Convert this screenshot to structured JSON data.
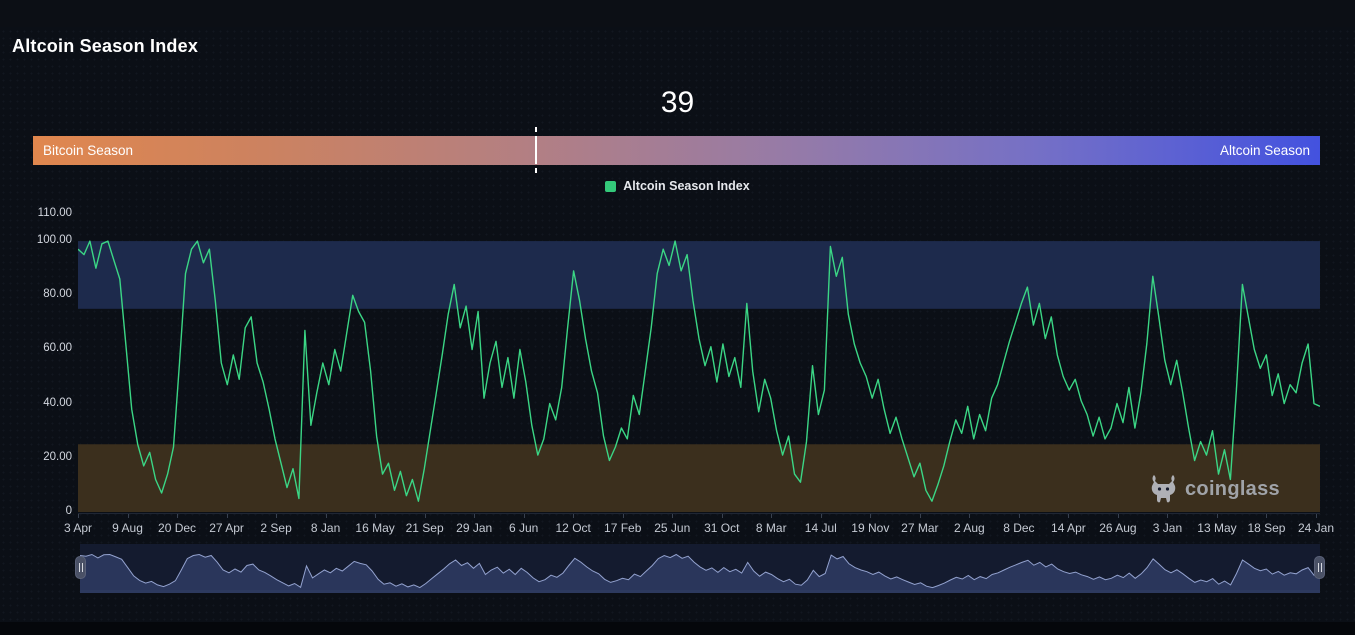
{
  "page": {
    "title": "Altcoin Season Index"
  },
  "header": {
    "current_value": "39"
  },
  "season_bar": {
    "left_label": "Bitcoin Season",
    "right_label": "Altcoin Season",
    "marker_percent": 39,
    "gradient_left": "#e0874e",
    "gradient_right": "#4352df"
  },
  "legend": {
    "label": "Altcoin Season Index",
    "swatch_color": "#34c97a"
  },
  "watermark": {
    "label": "coinglass"
  },
  "chart_data": {
    "type": "line",
    "title": "Altcoin Season Index",
    "series_name": "Altcoin Season Index",
    "line_color": "#3bd685",
    "current_value": 39,
    "ylim": [
      0,
      110
    ],
    "grid": false,
    "legend_position": "top-center",
    "y_ticks": [
      "110.00",
      "100.00",
      "80.00",
      "60.00",
      "40.00",
      "20.00",
      "0"
    ],
    "y_tick_values": [
      110,
      100,
      80,
      60,
      40,
      20,
      0
    ],
    "x_tick_labels": [
      "3 Apr",
      "9 Aug",
      "20 Dec",
      "27 Apr",
      "2 Sep",
      "8 Jan",
      "16 May",
      "21 Sep",
      "29 Jan",
      "6 Jun",
      "12 Oct",
      "17 Feb",
      "25 Jun",
      "31 Oct",
      "8 Mar",
      "14 Jul",
      "19 Nov",
      "27 Mar",
      "2 Aug",
      "8 Dec",
      "14 Apr",
      "26 Aug",
      "3 Jan",
      "13 May",
      "18 Sep",
      "24 Jan"
    ],
    "bands": [
      {
        "name": "altcoin-season-zone",
        "from": 75,
        "to": 100,
        "color": "#1d2a4c"
      },
      {
        "name": "bitcoin-season-zone",
        "from": 0,
        "to": 25,
        "color": "#3b2f1d"
      }
    ],
    "values": [
      97,
      95,
      100,
      90,
      99,
      100,
      93,
      86,
      62,
      38,
      25,
      17,
      22,
      12,
      7,
      14,
      24,
      55,
      88,
      97,
      100,
      92,
      97,
      78,
      55,
      47,
      58,
      49,
      68,
      72,
      55,
      48,
      38,
      27,
      18,
      9,
      16,
      5,
      67,
      32,
      44,
      55,
      47,
      60,
      52,
      66,
      80,
      74,
      70,
      52,
      28,
      14,
      18,
      8,
      15,
      6,
      12,
      4,
      16,
      30,
      44,
      58,
      73,
      84,
      68,
      76,
      60,
      74,
      42,
      55,
      63,
      46,
      57,
      42,
      60,
      48,
      32,
      21,
      27,
      40,
      34,
      46,
      68,
      89,
      78,
      64,
      52,
      44,
      28,
      19,
      24,
      31,
      27,
      43,
      36,
      52,
      68,
      88,
      97,
      91,
      100,
      89,
      95,
      78,
      64,
      54,
      61,
      48,
      62,
      50,
      57,
      46,
      77,
      52,
      37,
      49,
      42,
      30,
      21,
      28,
      14,
      11,
      26,
      54,
      36,
      45,
      98,
      87,
      94,
      73,
      62,
      55,
      50,
      42,
      49,
      38,
      29,
      35,
      27,
      20,
      13,
      18,
      8,
      4,
      10,
      17,
      26,
      34,
      29,
      39,
      27,
      36,
      30,
      42,
      47,
      55,
      63,
      70,
      77,
      83,
      69,
      77,
      64,
      72,
      58,
      50,
      45,
      49,
      41,
      36,
      28,
      35,
      27,
      31,
      40,
      33,
      46,
      31,
      44,
      62,
      87,
      72,
      56,
      47,
      56,
      44,
      31,
      19,
      26,
      21,
      30,
      14,
      23,
      12,
      45,
      84,
      72,
      60,
      53,
      58,
      43,
      51,
      40,
      47,
      44,
      55,
      62,
      40,
      39
    ]
  },
  "navigator": {
    "area_fill": "#3d4d7f",
    "line_color": "#93a2cf",
    "background": "#141b2f"
  }
}
